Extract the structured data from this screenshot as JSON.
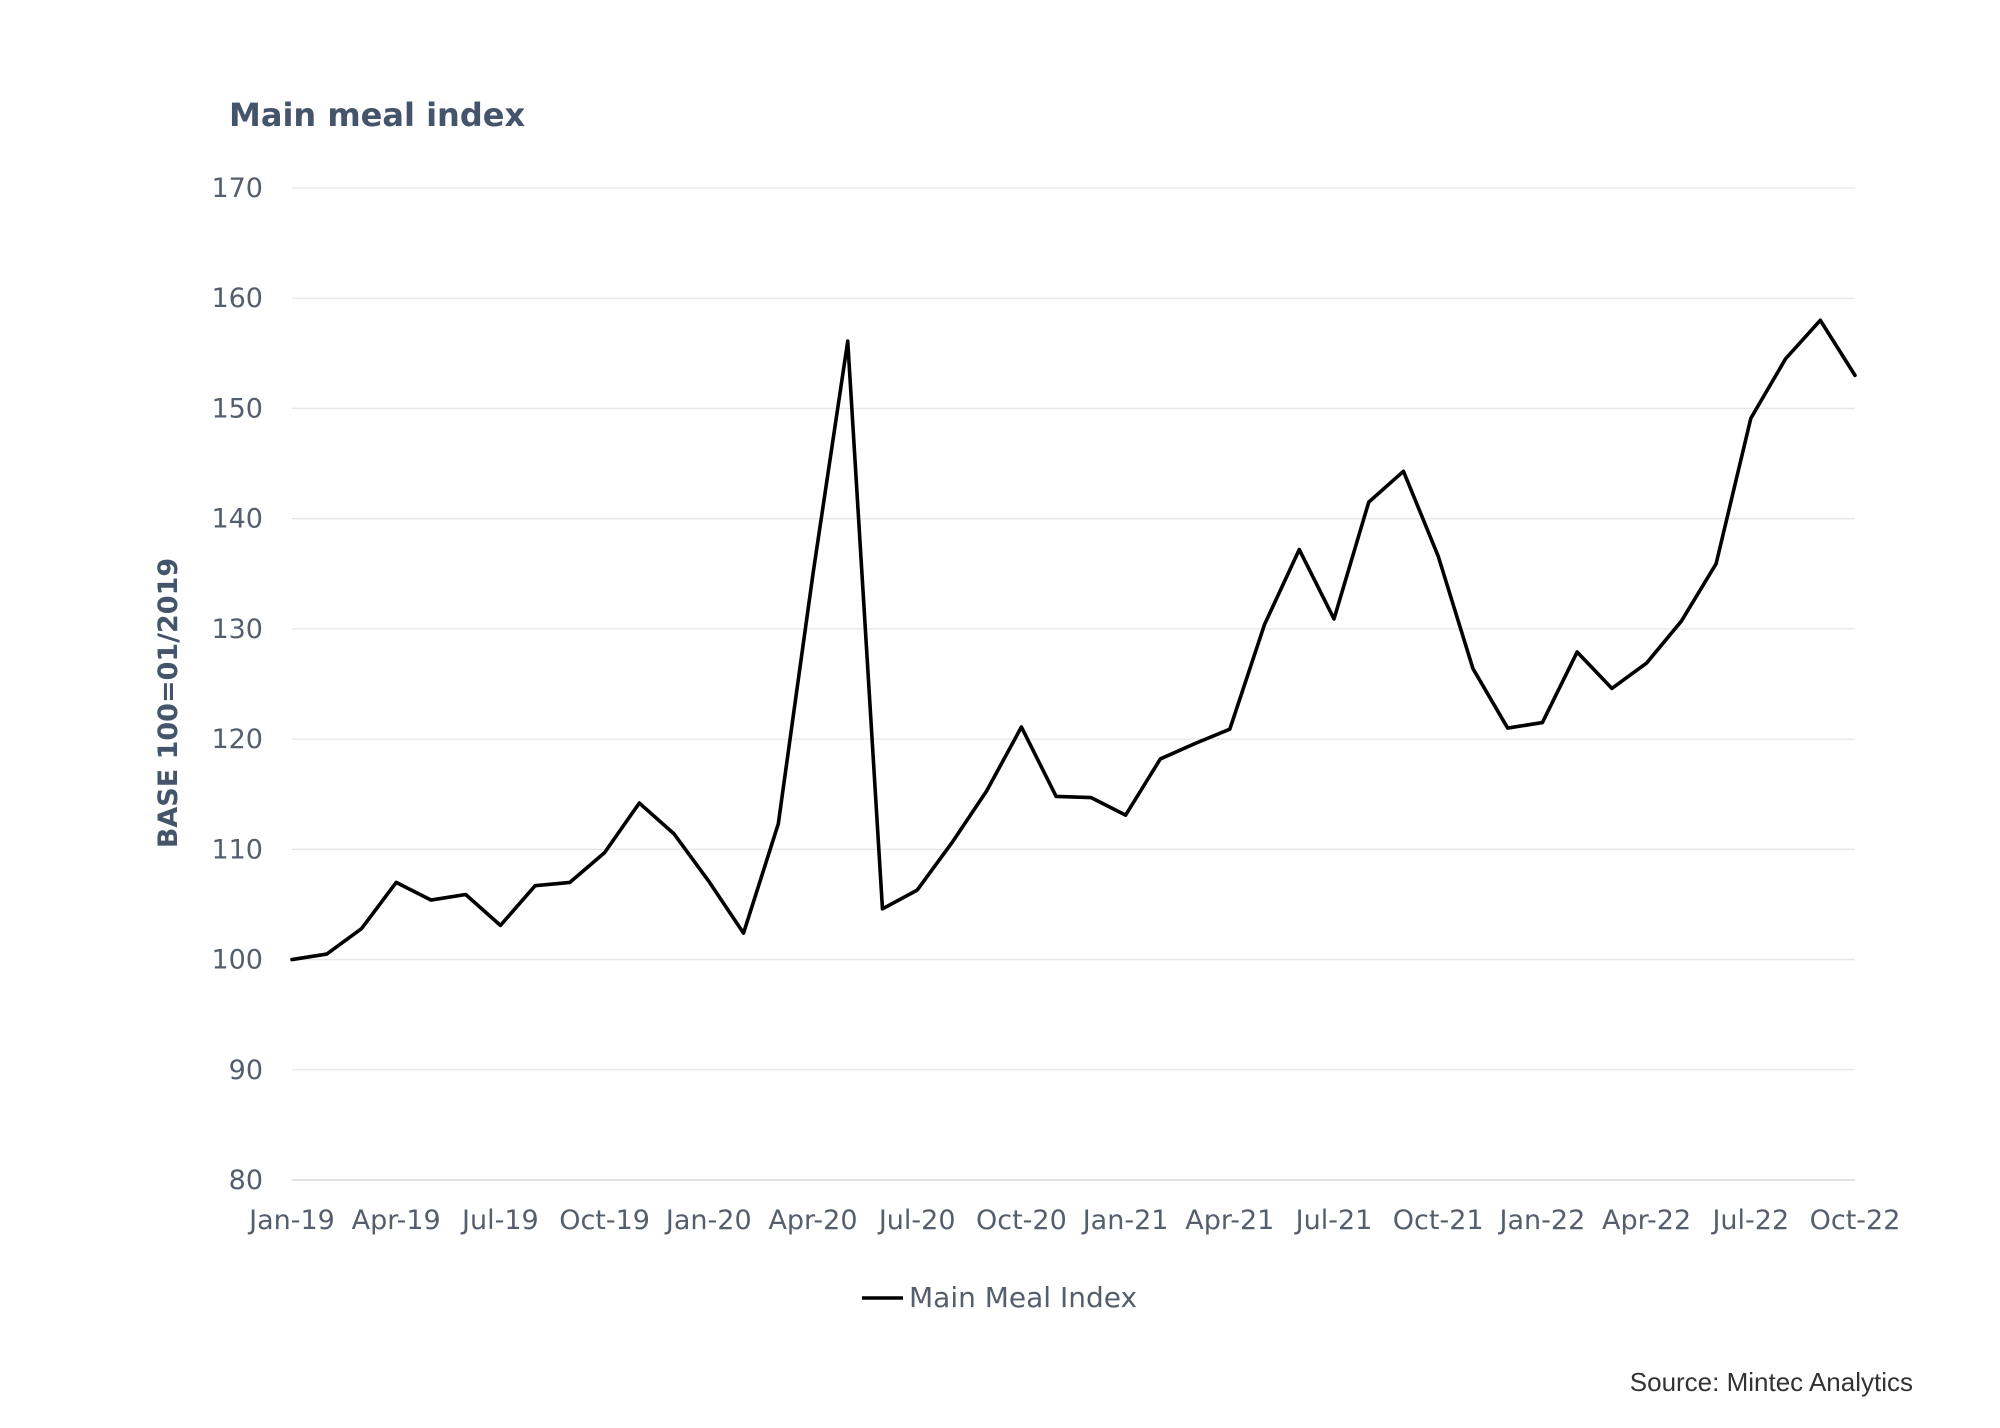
{
  "chart_data": {
    "type": "line",
    "title": "Main meal index",
    "ylabel": "BASE 100=01/2019",
    "xlabel": "",
    "ylim": [
      80,
      170
    ],
    "yticks": [
      80,
      90,
      100,
      110,
      120,
      130,
      140,
      150,
      160,
      170
    ],
    "xtick_labels": [
      "Jan-19",
      "Apr-19",
      "Jul-19",
      "Oct-19",
      "Jan-20",
      "Apr-20",
      "Jul-20",
      "Oct-20",
      "Jan-21",
      "Apr-21",
      "Jul-21",
      "Oct-21",
      "Jan-22",
      "Apr-22",
      "Jul-22",
      "Oct-22"
    ],
    "grid": true,
    "legend_position": "bottom",
    "x": [
      "Jan-19",
      "Feb-19",
      "Mar-19",
      "Apr-19",
      "May-19",
      "Jun-19",
      "Jul-19",
      "Aug-19",
      "Sep-19",
      "Oct-19",
      "Nov-19",
      "Dec-19",
      "Jan-20",
      "Feb-20",
      "Mar-20",
      "Apr-20",
      "May-20",
      "Jun-20",
      "Jul-20",
      "Aug-20",
      "Sep-20",
      "Oct-20",
      "Nov-20",
      "Dec-20",
      "Jan-21",
      "Feb-21",
      "Mar-21",
      "Apr-21",
      "May-21",
      "Jun-21",
      "Jul-21",
      "Aug-21",
      "Sep-21",
      "Oct-21",
      "Nov-21",
      "Dec-21",
      "Jan-22",
      "Feb-22",
      "Mar-22",
      "Apr-22",
      "May-22",
      "Jun-22",
      "Jul-22",
      "Aug-22",
      "Sep-22",
      "Oct-22"
    ],
    "series": [
      {
        "name": "Main Meal Index",
        "color": "#000000",
        "values": [
          100.0,
          100.5,
          102.8,
          107.0,
          105.4,
          105.9,
          103.1,
          106.7,
          107.0,
          109.7,
          114.2,
          111.4,
          107.1,
          102.4,
          112.3,
          135.0,
          156.1,
          104.6,
          106.3,
          110.6,
          115.3,
          121.1,
          114.8,
          114.7,
          113.1,
          118.2,
          119.6,
          120.9,
          130.4,
          137.2,
          130.9,
          141.5,
          144.3,
          136.6,
          126.4,
          121.0,
          121.5,
          127.9,
          124.6,
          126.9,
          130.7,
          135.9,
          149.1,
          154.5,
          158.0,
          153.0
        ]
      }
    ]
  },
  "source": "Source: Mintec Analytics"
}
